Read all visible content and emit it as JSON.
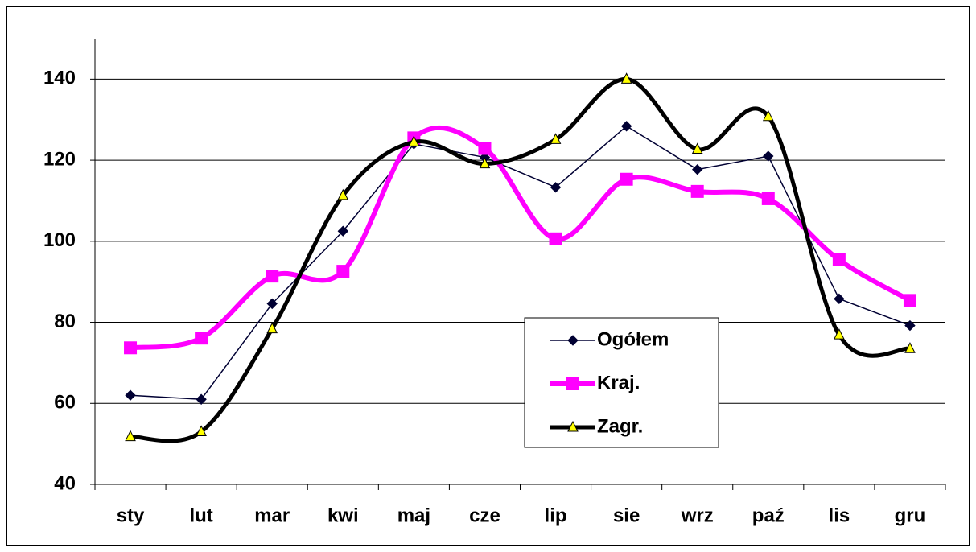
{
  "chart_data": {
    "type": "line",
    "categories": [
      "sty",
      "lut",
      "mar",
      "kwi",
      "maj",
      "cze",
      "lip",
      "sie",
      "wrz",
      "paź",
      "lis",
      "gru"
    ],
    "series": [
      {
        "name": "Ogółem",
        "color": "#000033",
        "smooth": false,
        "marker": "diamond",
        "values": [
          62.0,
          61.0,
          84.6,
          102.5,
          124.0,
          120.7,
          113.3,
          128.4,
          117.7,
          121.0,
          85.8,
          79.2
        ]
      },
      {
        "name": "Kraj.",
        "color": "#ff00ff",
        "smooth": true,
        "marker": "square",
        "values": [
          73.7,
          76.1,
          91.4,
          92.6,
          125.5,
          122.9,
          100.6,
          115.3,
          112.3,
          110.5,
          95.4,
          85.4
        ]
      },
      {
        "name": "Zagr.",
        "color": "#000000",
        "smooth": true,
        "marker": "triangle",
        "values": [
          51.8,
          53.0,
          78.4,
          111.3,
          124.5,
          119.1,
          125.1,
          140.0,
          122.7,
          130.8,
          76.9,
          73.5
        ]
      }
    ],
    "ylim": [
      40,
      150
    ],
    "yticks": [
      40,
      60,
      80,
      100,
      120,
      140
    ],
    "grid": true,
    "legend": "inside"
  }
}
